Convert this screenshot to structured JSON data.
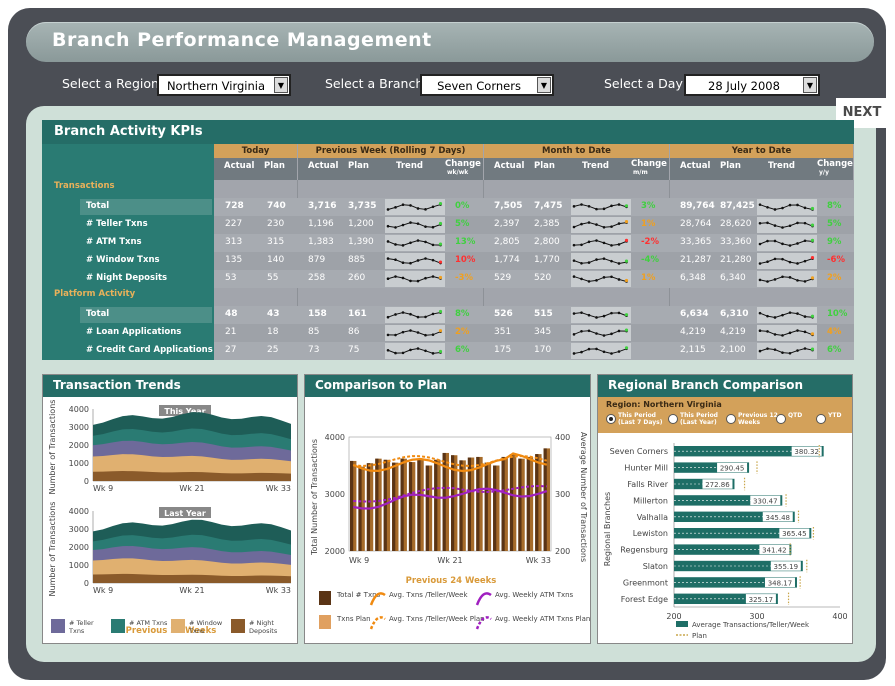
{
  "title": "Branch Performance Management",
  "selectors": {
    "region_label": "Select a Region",
    "region_value": "Northern Virginia",
    "branch_label": "Select a Branch",
    "branch_value": "Seven Corners",
    "day_label": "Select a Day",
    "day_value": "28 July 2008"
  },
  "next_label": "NEXT",
  "kpi": {
    "title": "Branch Activity KPIs",
    "groups": [
      "Today",
      "Previous Week (Rolling 7 Days)",
      "Month to Date",
      "Year to Date"
    ],
    "col_actual": "Actual",
    "col_plan": "Plan",
    "col_trend": "Trend",
    "col_change_wk": "Change",
    "col_change_wk_sub": "wk/wk",
    "col_change_mo_sub": "m/m",
    "col_change_yr_sub": "y/y",
    "sections": [
      {
        "label": "Transactions",
        "rows": [
          {
            "label": "Total",
            "today": [
              "728",
              "740"
            ],
            "week": [
              "3,716",
              "3,735",
              "0%"
            ],
            "month": [
              "7,505",
              "7,475",
              "3%"
            ],
            "year": [
              "89,764",
              "87,425",
              "8%"
            ],
            "status": [
              "g",
              "g",
              "g"
            ]
          },
          {
            "label": "# Teller Txns",
            "today": [
              "227",
              "230"
            ],
            "week": [
              "1,196",
              "1,200",
              "5%"
            ],
            "month": [
              "2,397",
              "2,385",
              "1%"
            ],
            "year": [
              "28,764",
              "28,620",
              "5%"
            ],
            "status": [
              "g",
              "o",
              "g"
            ]
          },
          {
            "label": "# ATM Txns",
            "today": [
              "313",
              "315"
            ],
            "week": [
              "1,383",
              "1,390",
              "13%"
            ],
            "month": [
              "2,805",
              "2,800",
              "-2%"
            ],
            "year": [
              "33,365",
              "33,360",
              "9%"
            ],
            "status": [
              "g",
              "r",
              "g"
            ]
          },
          {
            "label": "# Window Txns",
            "today": [
              "135",
              "140"
            ],
            "week": [
              "879",
              "885",
              "10%"
            ],
            "month": [
              "1,774",
              "1,770",
              "-4%"
            ],
            "year": [
              "21,287",
              "21,280",
              "-6%"
            ],
            "status": [
              "r",
              "g",
              "r"
            ]
          },
          {
            "label": "# Night Deposits",
            "today": [
              "53",
              "55"
            ],
            "week": [
              "258",
              "260",
              "-3%"
            ],
            "month": [
              "529",
              "520",
              "1%"
            ],
            "year": [
              "6,348",
              "6,340",
              "2%"
            ],
            "status": [
              "o",
              "o",
              "o"
            ]
          }
        ]
      },
      {
        "label": "Platform Activity",
        "rows": [
          {
            "label": "Total",
            "today": [
              "48",
              "43"
            ],
            "week": [
              "158",
              "161",
              "8%"
            ],
            "month": [
              "526",
              "515",
              ""
            ],
            "year": [
              "6,634",
              "6,310",
              "10%"
            ],
            "status": [
              "g",
              "g",
              "g"
            ]
          },
          {
            "label": "# Loan Applications",
            "today": [
              "21",
              "18"
            ],
            "week": [
              "85",
              "86",
              "2%"
            ],
            "month": [
              "351",
              "345",
              ""
            ],
            "year": [
              "4,219",
              "4,219",
              "4%"
            ],
            "status": [
              "o",
              "g",
              "o"
            ]
          },
          {
            "label": "# Credit Card Applications",
            "today": [
              "27",
              "25"
            ],
            "week": [
              "73",
              "75",
              "6%"
            ],
            "month": [
              "175",
              "170",
              ""
            ],
            "year": [
              "2,115",
              "2,100",
              "6%"
            ],
            "status": [
              "g",
              "g",
              "g"
            ]
          }
        ]
      }
    ]
  },
  "trends": {
    "title": "Transaction Trends",
    "this_year": "This Year",
    "last_year": "Last Year",
    "ylabel": "Number of Transactions",
    "yticks": [
      "4000",
      "3000",
      "2000",
      "1000",
      "0"
    ],
    "xticks": [
      "Wk 9",
      "Wk 21",
      "Wk 33"
    ],
    "footer": "Previous 24 Weeks",
    "legend": [
      "# Teller Txns",
      "# ATM Txns",
      "# Window Txns",
      "# Night Deposits"
    ]
  },
  "comparison": {
    "title": "Comparison to Plan",
    "ylabel": "Total Number of Transactions",
    "y2label": "Average Number of Transactions",
    "yticks": [
      "4000",
      "3000",
      "2000"
    ],
    "y2ticks": [
      "400",
      "300",
      "200"
    ],
    "xticks": [
      "Wk 9",
      "Wk 21",
      "Wk 33"
    ],
    "footer": "Previous 24 Weeks",
    "legend": [
      "Total # Txns",
      "Txns Plan",
      "Avg. Txns /Teller/Week",
      "Avg. Txns /Teller/Week Plan",
      "Avg. Weekly ATM Txns",
      "Avg. Weekly ATM Txns Plan"
    ]
  },
  "regional": {
    "title": "Regional Branch Comparison",
    "region_label": "Region: Northern Virginia",
    "radios": [
      "This Period (Last 7 Days)",
      "This Period (Last Year)",
      "Previous 12 Weeks",
      "QTD",
      "YTD"
    ],
    "ylabel": "Regional Branches",
    "xticks": [
      "200",
      "300",
      "400"
    ],
    "legend": [
      "Average Transactions/Teller/Week",
      "Plan"
    ]
  },
  "chart_data": [
    {
      "type": "bar",
      "title": "Regional Branch Comparison",
      "ylabel": "Regional Branches",
      "xlim": [
        200,
        400
      ],
      "categories": [
        "Seven Corners",
        "Hunter Mill",
        "Falls River",
        "Millerton",
        "Valhalla",
        "Lewiston",
        "Regensburg",
        "Slaton",
        "Greenmont",
        "Forest Edge"
      ],
      "series": [
        {
          "name": "Average Transactions/Teller/Week",
          "values": [
            380.32,
            290.45,
            272.86,
            330.47,
            345.48,
            365.45,
            341.42,
            355.19,
            348.17,
            325.17
          ]
        },
        {
          "name": "Plan",
          "values": [
            375,
            300,
            285,
            335,
            350,
            368,
            340,
            360,
            352,
            338
          ]
        }
      ]
    },
    {
      "type": "area",
      "title": "Transaction Trends",
      "ylabel": "Number of Transactions",
      "ylim": [
        0,
        4000
      ],
      "xticks": [
        "Wk 9",
        "Wk 21",
        "Wk 33"
      ],
      "series": [
        {
          "name": "This Year",
          "values": [
            2900,
            3000,
            3150,
            3300,
            3350,
            3200,
            3200,
            3250
          ]
        },
        {
          "name": "Last Year",
          "values": [
            2700,
            2800,
            2950,
            3000,
            2950,
            2800,
            2750,
            2700
          ]
        }
      ]
    },
    {
      "type": "bar",
      "title": "Comparison to Plan",
      "ylabel": "Total Number of Transactions",
      "ylim": [
        2000,
        4000
      ],
      "series": [
        {
          "name": "Total # Txns",
          "values": [
            3580,
            3480,
            3540,
            3620,
            3600,
            3550,
            3620,
            3560,
            3620,
            3500,
            3600,
            3720,
            3680,
            3590,
            3640,
            3650,
            3550,
            3500,
            3650,
            3700,
            3620,
            3650,
            3700,
            3800
          ]
        },
        {
          "name": "Txns Plan",
          "values": [
            3520,
            3540,
            3560,
            3580,
            3590,
            3600,
            3610,
            3620,
            3620,
            3630,
            3640,
            3650,
            3660,
            3660,
            3670,
            3680,
            3680,
            3690,
            3690,
            3700,
            3710,
            3720,
            3730,
            3740
          ]
        }
      ]
    }
  ]
}
